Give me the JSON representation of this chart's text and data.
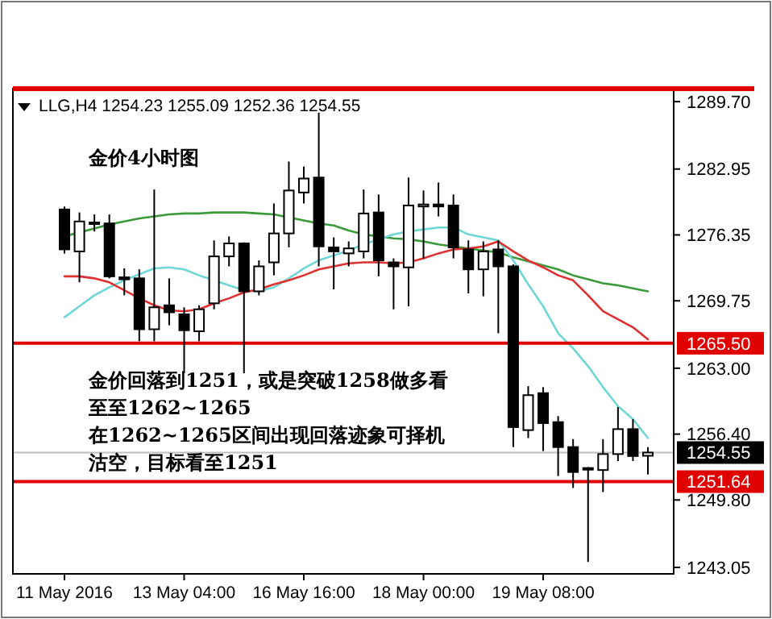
{
  "chart_data": {
    "type": "candlestick",
    "title": "LLG,H4  1254.23 1255.09 1252.36 1254.55",
    "annotations": [
      "金价4小时图",
      "金价回落到1251，或是突破1258做多看至至1262~1265",
      "在1262~1265区间出现回落迹象可择机沽空，目标看至1251"
    ],
    "categories": [
      "11 May 2016",
      null,
      null,
      null,
      null,
      null,
      null,
      null,
      "13 May 04:00",
      null,
      null,
      null,
      null,
      null,
      null,
      null,
      "16 May 16:00",
      null,
      null,
      null,
      null,
      null,
      null,
      null,
      "18 May 00:00",
      null,
      null,
      null,
      null,
      null,
      null,
      null,
      "19 May 08:00",
      null,
      null,
      null,
      null,
      null,
      null,
      null
    ],
    "ohlc": [
      [
        1278.9,
        1279.2,
        1274.5,
        1274.9
      ],
      [
        1274.7,
        1278.6,
        1271.6,
        1277.7
      ],
      [
        1277.5,
        1278.4,
        1276.7,
        1277.6
      ],
      [
        1277.5,
        1278.4,
        1272.0,
        1272.2
      ],
      [
        1272.1,
        1273.0,
        1270.3,
        1271.9
      ],
      [
        1272.0,
        1272.9,
        1265.7,
        1266.9
      ],
      [
        1266.9,
        1280.9,
        1265.7,
        1269.1
      ],
      [
        1269.3,
        1272.0,
        1267.3,
        1268.6
      ],
      [
        1268.4,
        1269.1,
        1262.5,
        1266.8
      ],
      [
        1266.7,
        1269.3,
        1265.7,
        1268.9
      ],
      [
        1269.5,
        1275.8,
        1268.9,
        1274.2
      ],
      [
        1274.2,
        1276.2,
        1273.2,
        1275.5
      ],
      [
        1275.5,
        1275.6,
        1262.5,
        1270.7
      ],
      [
        1270.7,
        1273.8,
        1270.3,
        1273.2
      ],
      [
        1273.6,
        1279.5,
        1272.3,
        1276.5
      ],
      [
        1276.5,
        1283.7,
        1275.1,
        1280.8
      ],
      [
        1280.6,
        1283.2,
        1279.5,
        1282.0
      ],
      [
        1282.1,
        1288.6,
        1273.2,
        1275.2
      ],
      [
        1275.1,
        1276.1,
        1270.9,
        1274.7
      ],
      [
        1274.5,
        1275.7,
        1273.2,
        1275.0
      ],
      [
        1274.7,
        1280.9,
        1274.0,
        1278.5
      ],
      [
        1278.6,
        1280.4,
        1272.2,
        1273.8
      ],
      [
        1273.6,
        1274.0,
        1268.9,
        1273.2
      ],
      [
        1273.1,
        1282.1,
        1269.2,
        1279.3
      ],
      [
        1279.2,
        1280.8,
        1274.0,
        1279.4
      ],
      [
        1279.4,
        1281.6,
        1278.2,
        1279.2
      ],
      [
        1279.3,
        1280.4,
        1274.0,
        1275.1
      ],
      [
        1274.9,
        1275.8,
        1270.5,
        1272.9
      ],
      [
        1272.9,
        1275.7,
        1270.2,
        1274.7
      ],
      [
        1274.9,
        1275.8,
        1266.5,
        1273.2
      ],
      [
        1273.2,
        1273.4,
        1255.1,
        1257.1
      ],
      [
        1256.8,
        1261.2,
        1256.0,
        1260.3
      ],
      [
        1260.5,
        1261.1,
        1254.7,
        1257.5
      ],
      [
        1257.6,
        1258.2,
        1252.2,
        1255.1
      ],
      [
        1255.1,
        1255.9,
        1251.0,
        1252.6
      ],
      [
        1252.9,
        1253.1,
        1243.6,
        1253.0
      ],
      [
        1252.8,
        1255.9,
        1250.6,
        1254.4
      ],
      [
        1254.4,
        1259.1,
        1253.7,
        1256.9
      ],
      [
        1256.9,
        1257.9,
        1253.7,
        1254.2
      ],
      [
        1254.23,
        1255.09,
        1252.36,
        1254.55
      ]
    ],
    "series": [
      {
        "type": "line",
        "color": "#3a9a3a",
        "values": [
          1276.2,
          1276.6,
          1277.0,
          1277.4,
          1277.7,
          1278.0,
          1278.2,
          1278.4,
          1278.5,
          1278.5,
          1278.6,
          1278.6,
          1278.6,
          1278.5,
          1278.4,
          1278.1,
          1277.8,
          1277.5,
          1277.3,
          1276.8,
          1276.4,
          1276.2,
          1276.0,
          1275.9,
          1275.7,
          1275.4,
          1275.2,
          1275.0,
          1274.8,
          1274.6,
          1274.1,
          1273.7,
          1273.3,
          1272.9,
          1272.3,
          1271.9,
          1271.5,
          1271.3,
          1271.0,
          1270.7
        ]
      },
      {
        "type": "line",
        "color": "#6fd6d6",
        "values": [
          1268.1,
          1269.2,
          1270.3,
          1271.1,
          1271.8,
          1272.4,
          1273.0,
          1273.1,
          1272.9,
          1272.3,
          1271.8,
          1271.3,
          1270.8,
          1270.7,
          1271.1,
          1272.0,
          1273.0,
          1273.8,
          1274.3,
          1274.8,
          1275.4,
          1275.9,
          1276.4,
          1276.7,
          1276.9,
          1277.1,
          1277.1,
          1276.4,
          1276.1,
          1275.8,
          1273.8,
          1271.4,
          1269.2,
          1266.5,
          1265.0,
          1263.2,
          1261.1,
          1259.2,
          1257.9,
          1256.0
        ]
      },
      {
        "type": "line",
        "color": "#e03030",
        "values": [
          1272.2,
          1272.2,
          1272.0,
          1271.6,
          1270.8,
          1270.0,
          1269.3,
          1268.8,
          1268.7,
          1268.9,
          1269.5,
          1270.0,
          1270.6,
          1270.9,
          1271.4,
          1271.8,
          1272.3,
          1272.9,
          1273.2,
          1273.5,
          1273.6,
          1273.6,
          1273.5,
          1273.6,
          1274.0,
          1274.5,
          1274.9,
          1275.0,
          1275.2,
          1275.7,
          1274.7,
          1273.8,
          1273.1,
          1272.3,
          1271.8,
          1270.3,
          1268.7,
          1267.9,
          1267.1,
          1265.9
        ]
      }
    ],
    "ref_lines": [
      {
        "axis": "y",
        "value": 1265.5,
        "label": "1265.50",
        "color": "#e00000"
      },
      {
        "axis": "y",
        "value": 1251.64,
        "label": "1251.64",
        "color": "#e00000"
      },
      {
        "axis": "y",
        "value": 1254.55,
        "label": "1254.55",
        "color": "#c0c0c0"
      }
    ],
    "ylim": [
      1242.4,
      1291.0
    ],
    "yticks": [
      {
        "value": 1289.7,
        "label": "1289.70"
      },
      1282.95,
      1276.35,
      1269.75,
      {
        "value": 1263.0,
        "label": "1263.00"
      },
      {
        "value": 1256.4,
        "label": "1256.40"
      },
      {
        "value": 1249.8,
        "label": "1249.80"
      },
      1243.05
    ],
    "grid": false
  }
}
